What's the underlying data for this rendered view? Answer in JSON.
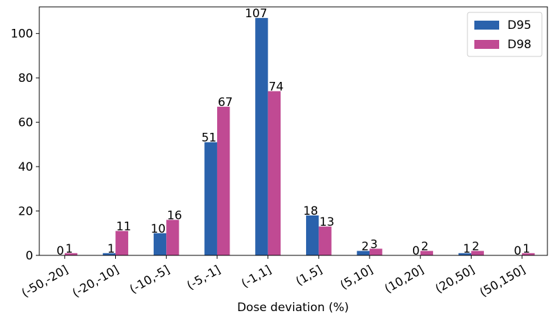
{
  "chart_data": {
    "type": "bar",
    "title": "",
    "xlabel": "Dose deviation (%)",
    "ylabel": "",
    "categories": [
      "(-50,-20]",
      "(-20,-10]",
      "(-10,-5]",
      "(-5,-1]",
      "(-1,1]",
      "(1,5]",
      "(5,10]",
      "(10,20]",
      "(20,50]",
      "(50,150]"
    ],
    "series": [
      {
        "name": "D95",
        "color": "#2a62ac",
        "values": [
          0,
          1,
          10,
          51,
          107,
          18,
          2,
          0,
          1,
          0
        ]
      },
      {
        "name": "D98",
        "color": "#c04a93",
        "values": [
          1,
          11,
          16,
          67,
          74,
          13,
          3,
          2,
          2,
          1
        ]
      }
    ],
    "ylim": [
      0,
      112
    ],
    "yticks": [
      0,
      20,
      40,
      60,
      80,
      100
    ],
    "grid": false,
    "legend_position": "top-right",
    "data_labels": true
  }
}
